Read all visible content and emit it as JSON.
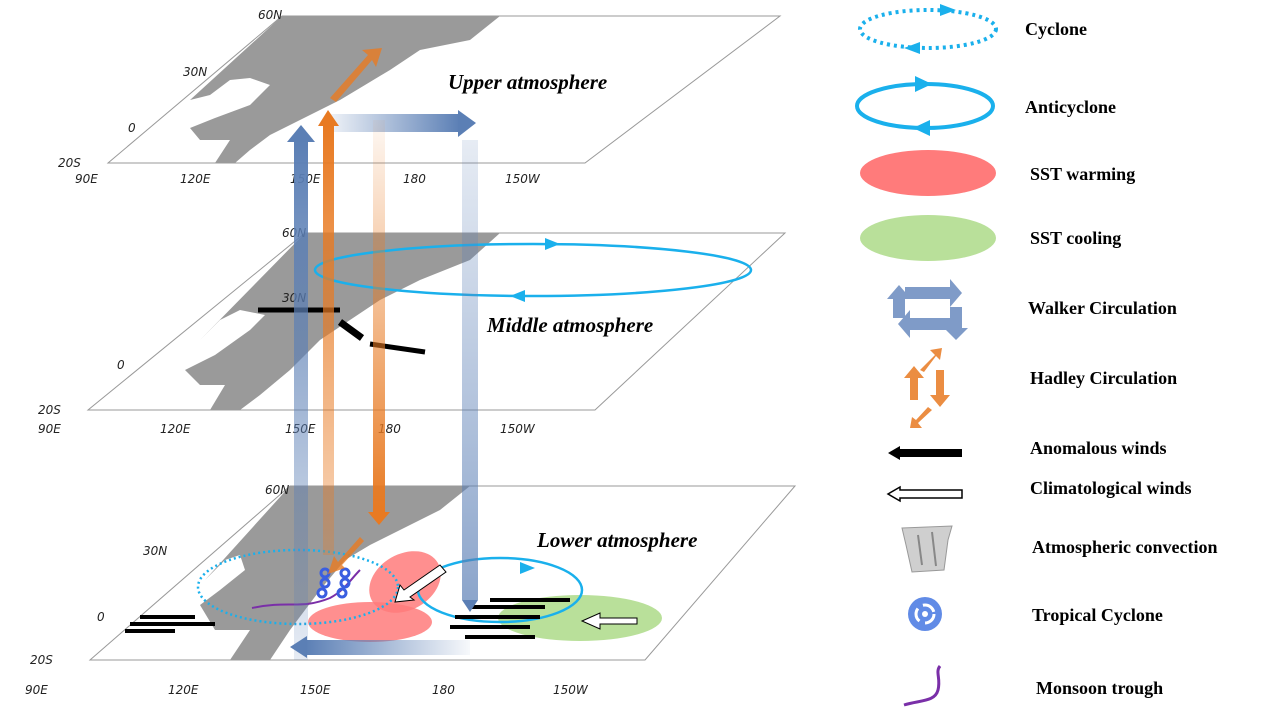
{
  "levels": [
    {
      "label": "Upper atmosphere",
      "lat": [
        "60N",
        "30N",
        "0",
        "20S"
      ],
      "lon": [
        "90E",
        "120E",
        "150E",
        "180",
        "150W"
      ]
    },
    {
      "label": "Middle atmosphere",
      "lat": [
        "60N",
        "30N",
        "0",
        "20S"
      ],
      "lon": [
        "90E",
        "120E",
        "150E",
        "180",
        "150W"
      ]
    },
    {
      "label": "Lower atmosphere",
      "lat": [
        "60N",
        "30N",
        "0",
        "20S"
      ],
      "lon": [
        "90E",
        "120E",
        "150E",
        "180",
        "150W"
      ]
    }
  ],
  "legend": [
    {
      "icon": "cyclone-icon",
      "label": "Cyclone"
    },
    {
      "icon": "anticyclone-icon",
      "label": "Anticyclone"
    },
    {
      "icon": "sst-warming-icon",
      "label": "SST warming"
    },
    {
      "icon": "sst-cooling-icon",
      "label": "SST cooling"
    },
    {
      "icon": "walker-circulation-icon",
      "label": "Walker Circulation"
    },
    {
      "icon": "hadley-circulation-icon",
      "label": "Hadley Circulation"
    },
    {
      "icon": "anomalous-winds-icon",
      "label": "Anomalous winds"
    },
    {
      "icon": "climatological-winds-icon",
      "label": "Climatological winds"
    },
    {
      "icon": "atmospheric-convection-icon",
      "label": "Atmospheric convection"
    },
    {
      "icon": "tropical-cyclone-icon",
      "label": "Tropical Cyclone"
    },
    {
      "icon": "monsoon-trough-icon",
      "label": "Monsoon trough"
    }
  ],
  "colors": {
    "cyclone": "#1ab0ec",
    "warming": "#ff7b7b",
    "cooling": "#b9e09a",
    "walker": "#5b7fb5",
    "hadley": "#e87a22",
    "trough": "#7a2fa8"
  }
}
